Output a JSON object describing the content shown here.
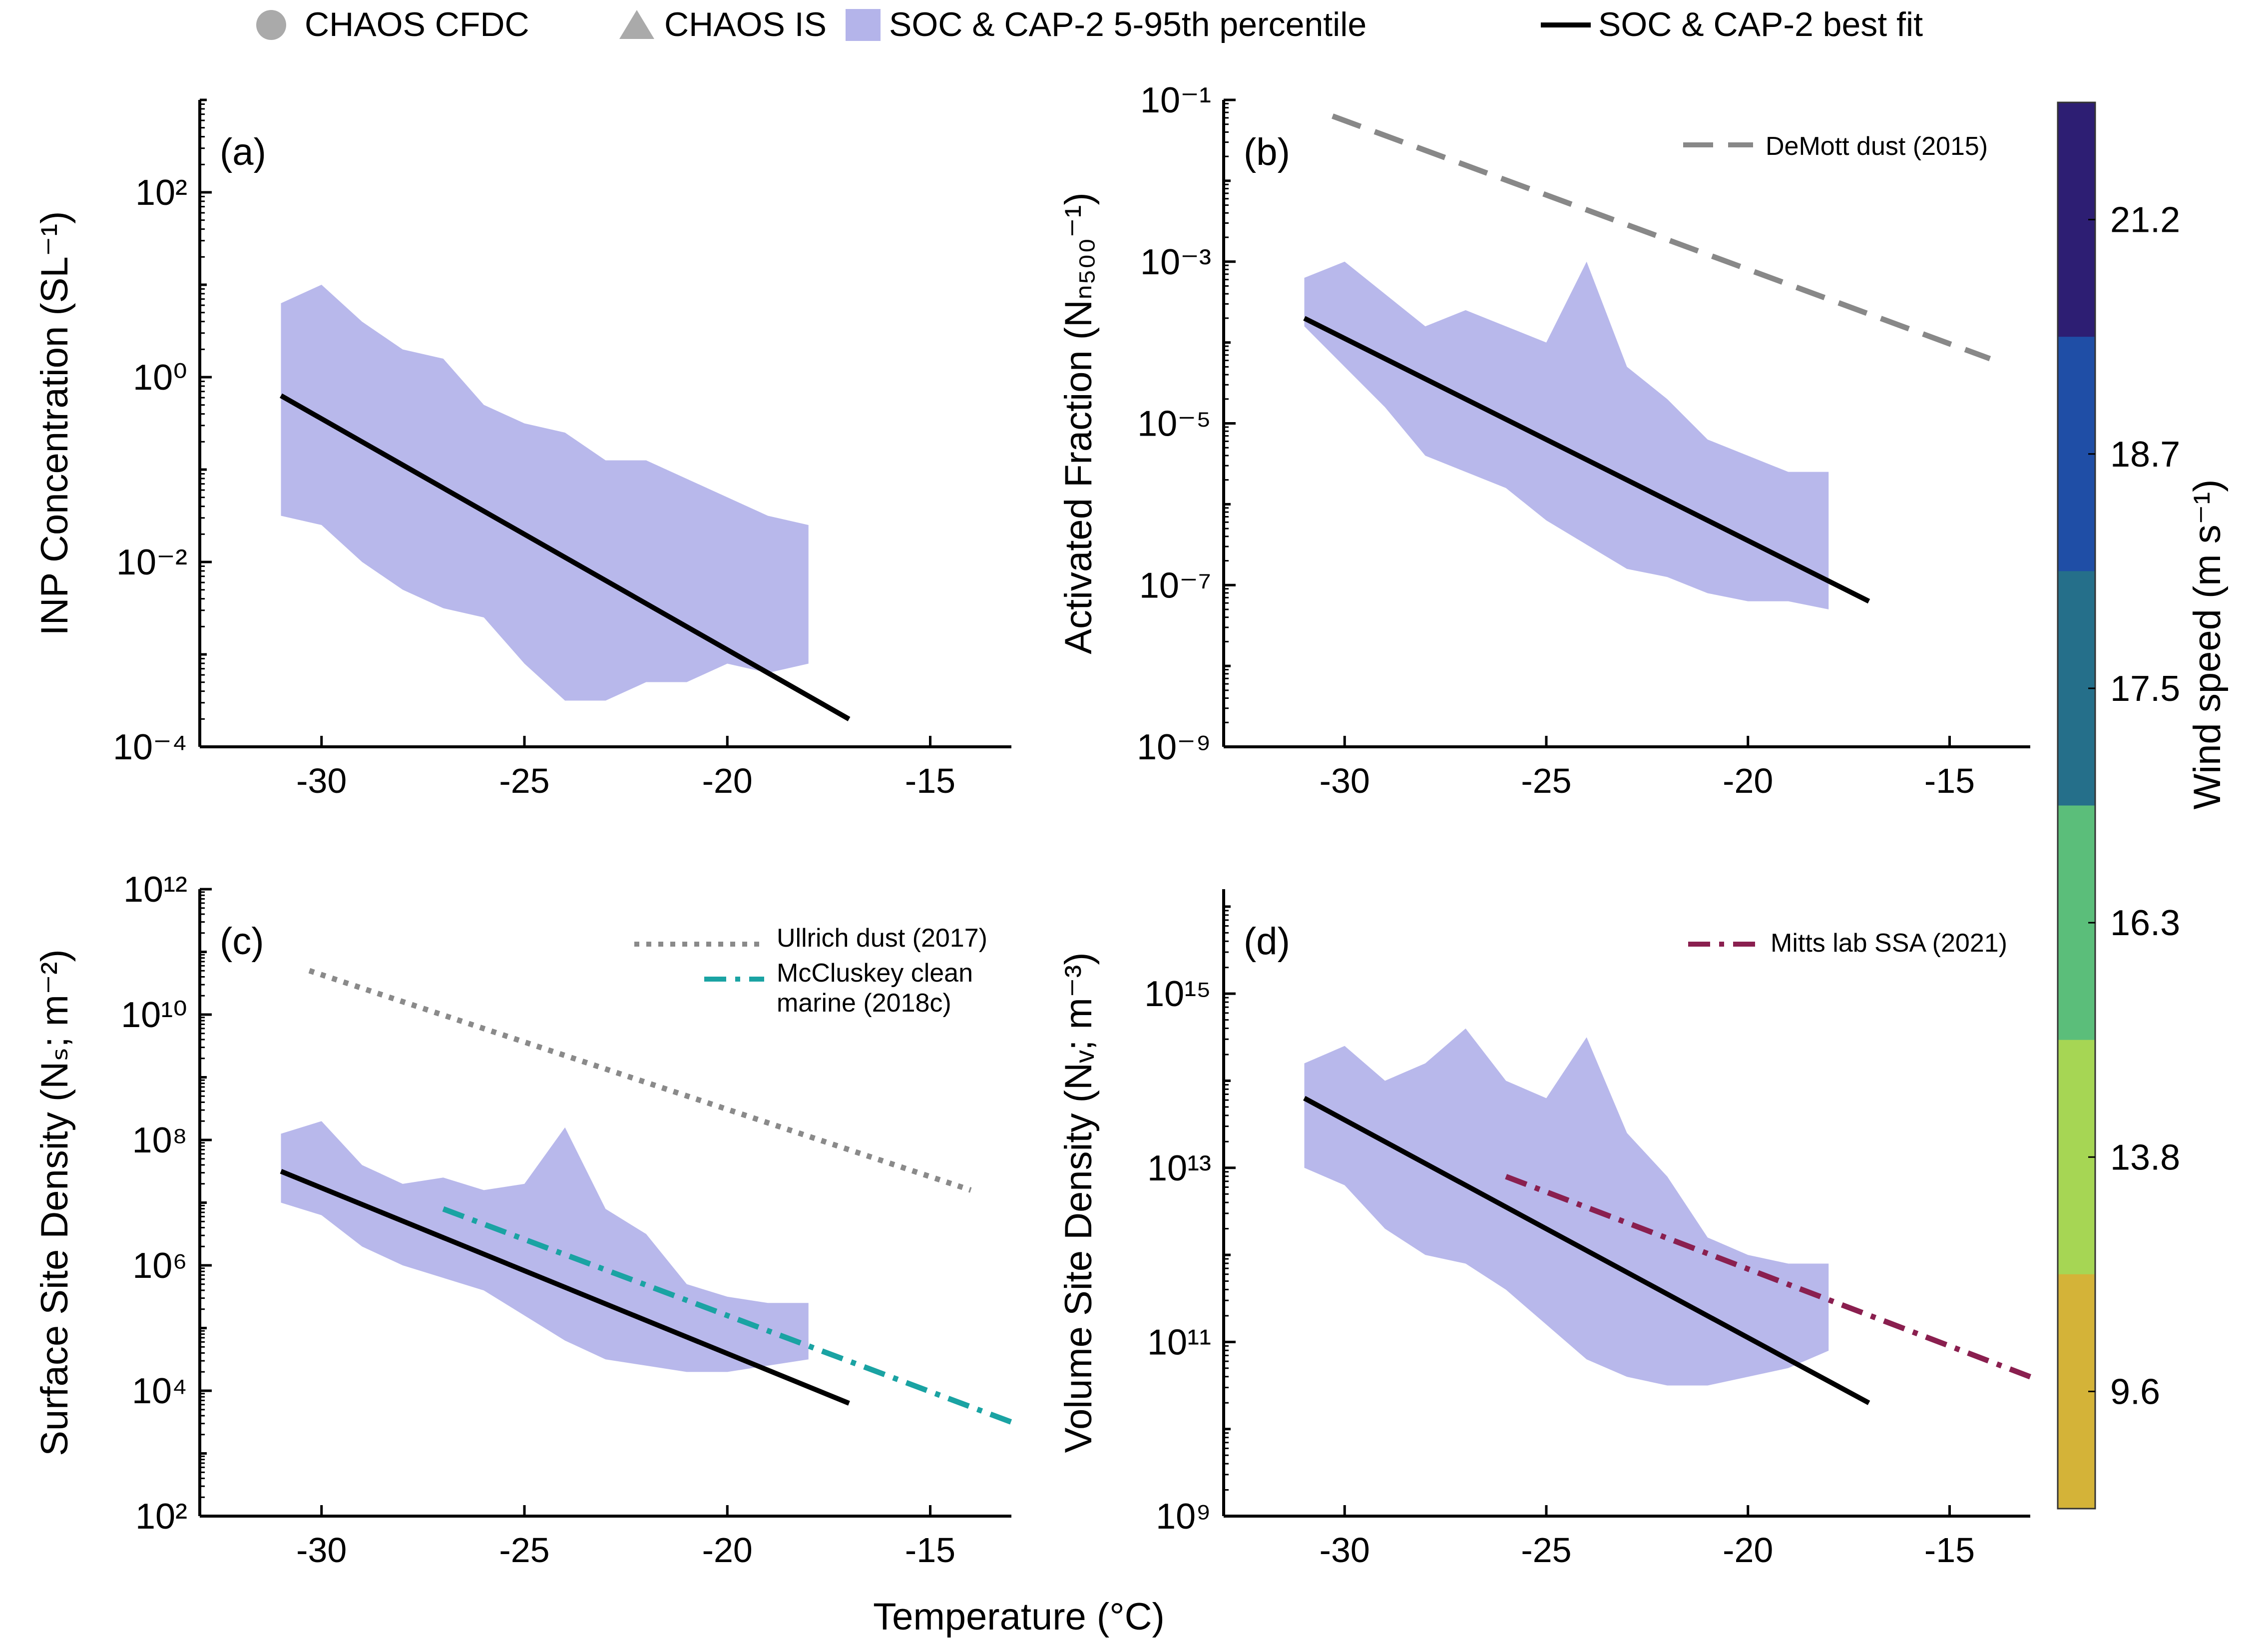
{
  "legend_top": [
    {
      "marker": "circle",
      "label": "CHAOS CFDC",
      "color": "#aaaaaa"
    },
    {
      "marker": "triangle",
      "label": "CHAOS IS",
      "color": "#aaaaaa"
    },
    {
      "marker": "patch",
      "label": "SOC & CAP-2 5-95th percentile",
      "color": "#b4b4ea"
    },
    {
      "marker": "line",
      "label": "SOC & CAP-2 best fit",
      "color": "#000000"
    }
  ],
  "xlabel": "Temperature (°C)",
  "colorbar": {
    "label": "Wind speed (m s⁻¹)",
    "ticks": [
      "21.2",
      "18.7",
      "17.5",
      "16.3",
      "13.8",
      "9.6"
    ],
    "colors_top_to_bottom": [
      "#2d1e73",
      "#1f4ea6",
      "#256f8a",
      "#5bbe7a",
      "#a6d654",
      "#d4b338"
    ]
  },
  "colors": {
    "band": "#b4b4ea",
    "errorbar": "#b0b0b0",
    "fit": "#000000",
    "demott": "#888888",
    "ullrich": "#8a8a8a",
    "mccluskey": "#1aa3a3",
    "mitts": "#8a1f4f"
  },
  "chart_data": [
    {
      "id": "a",
      "type": "scatter",
      "panel_label": "(a)",
      "ylabel": "INP Concentration (SL⁻¹)",
      "xlim": [
        -33,
        -13
      ],
      "ylim_log10": [
        -4,
        3
      ],
      "xticks": [
        "-30",
        "-25",
        "-20",
        "-15"
      ],
      "yticks": [
        "10⁻⁴",
        "10⁻²",
        "10⁰",
        "10²"
      ],
      "ytick_exponents": [
        -4,
        -2,
        0,
        2
      ],
      "band": {
        "x": [
          -31,
          -30,
          -29,
          -28,
          -27,
          -26,
          -25,
          -24,
          -23,
          -22,
          -21,
          -20,
          -19,
          -18
        ],
        "upper_log10": [
          0.8,
          1.0,
          0.6,
          0.3,
          0.2,
          -0.3,
          -0.5,
          -0.6,
          -0.9,
          -0.9,
          -1.1,
          -1.3,
          -1.5,
          -1.6
        ],
        "lower_log10": [
          -1.5,
          -1.6,
          -2.0,
          -2.3,
          -2.5,
          -2.6,
          -3.1,
          -3.5,
          -3.5,
          -3.3,
          -3.3,
          -3.1,
          -3.2,
          -3.1
        ]
      },
      "fit": {
        "x": [
          -31,
          -17
        ],
        "y_log10": [
          -0.2,
          -3.7
        ]
      },
      "reference_lines": []
    },
    {
      "id": "b",
      "type": "scatter",
      "panel_label": "(b)",
      "ylabel": "Activated Fraction (Nₙ₅₀₀⁻¹)",
      "xlim": [
        -33,
        -13
      ],
      "ylim_log10": [
        -9,
        -1
      ],
      "xticks": [
        "-30",
        "-25",
        "-20",
        "-15"
      ],
      "yticks": [
        "10⁻⁹",
        "10⁻⁷",
        "10⁻⁵",
        "10⁻³",
        "10⁻¹"
      ],
      "ytick_exponents": [
        -9,
        -7,
        -5,
        -3,
        -1
      ],
      "band": {
        "x": [
          -31,
          -30,
          -29,
          -28,
          -27,
          -26,
          -25,
          -24,
          -23,
          -22,
          -21,
          -20,
          -19,
          -18
        ],
        "upper_log10": [
          -3.2,
          -3.0,
          -3.4,
          -3.8,
          -3.6,
          -3.8,
          -4.0,
          -3.0,
          -4.3,
          -4.7,
          -5.2,
          -5.4,
          -5.6,
          -5.6
        ],
        "lower_log10": [
          -3.8,
          -4.3,
          -4.8,
          -5.4,
          -5.6,
          -5.8,
          -6.2,
          -6.5,
          -6.8,
          -6.9,
          -7.1,
          -7.2,
          -7.2,
          -7.3
        ]
      },
      "fit": {
        "x": [
          -31,
          -17
        ],
        "y_log10": [
          -3.7,
          -7.2
        ]
      },
      "reference_lines": [
        {
          "name": "DeMott dust (2015)",
          "style": "dashed",
          "color_key": "demott",
          "x": [
            -30.3,
            -14.0
          ],
          "y_log10": [
            -1.2,
            -4.2
          ]
        }
      ]
    },
    {
      "id": "c",
      "type": "scatter",
      "panel_label": "(c)",
      "ylabel": "Surface Site Density (Nₛ; m⁻²)",
      "xlim": [
        -33,
        -13
      ],
      "ylim_log10": [
        2,
        12
      ],
      "xticks": [
        "-30",
        "-25",
        "-20",
        "-15"
      ],
      "yticks": [
        "10²",
        "10⁴",
        "10⁶",
        "10⁸",
        "10¹⁰",
        "10¹²"
      ],
      "ytick_exponents": [
        2,
        4,
        6,
        8,
        10,
        12
      ],
      "band": {
        "x": [
          -31,
          -30,
          -29,
          -28,
          -27,
          -26,
          -25,
          -24,
          -23,
          -22,
          -21,
          -20,
          -19,
          -18
        ],
        "upper_log10": [
          8.1,
          8.3,
          7.6,
          7.3,
          7.4,
          7.2,
          7.3,
          8.2,
          6.9,
          6.5,
          5.7,
          5.5,
          5.4,
          5.4
        ],
        "lower_log10": [
          7.0,
          6.8,
          6.3,
          6.0,
          5.8,
          5.6,
          5.2,
          4.8,
          4.5,
          4.4,
          4.3,
          4.3,
          4.4,
          4.5
        ]
      },
      "fit": {
        "x": [
          -31,
          -17
        ],
        "y_log10": [
          7.5,
          3.8
        ]
      },
      "reference_lines": [
        {
          "name": "Ullrich dust (2017)",
          "style": "dotted",
          "color_key": "ullrich",
          "x": [
            -30.3,
            -14.0
          ],
          "y_log10": [
            10.7,
            7.2
          ]
        },
        {
          "name": "McCluskey clean marine (2018c)",
          "style": "dashdot",
          "color_key": "mccluskey",
          "x": [
            -27.0,
            -13.0
          ],
          "y_log10": [
            6.9,
            3.5
          ]
        }
      ]
    },
    {
      "id": "d",
      "type": "scatter",
      "panel_label": "(d)",
      "ylabel": "Volume Site Density (Nᵥ; m⁻³)",
      "xlim": [
        -33,
        -13
      ],
      "ylim_log10": [
        9,
        16.2
      ],
      "xticks": [
        "-30",
        "-25",
        "-20",
        "-15"
      ],
      "yticks": [
        "10⁹",
        "10¹¹",
        "10¹³",
        "10¹⁵"
      ],
      "ytick_exponents": [
        9,
        11,
        13,
        15
      ],
      "band": {
        "x": [
          -31,
          -30,
          -29,
          -28,
          -27,
          -26,
          -25,
          -24,
          -23,
          -22,
          -21,
          -20,
          -19,
          -18
        ],
        "upper_log10": [
          14.2,
          14.4,
          14.0,
          14.2,
          14.6,
          14.0,
          13.8,
          14.5,
          13.4,
          12.9,
          12.2,
          12.0,
          11.9,
          11.9
        ],
        "lower_log10": [
          13.0,
          12.8,
          12.3,
          12.0,
          11.9,
          11.6,
          11.2,
          10.8,
          10.6,
          10.5,
          10.5,
          10.6,
          10.7,
          10.9
        ]
      },
      "fit": {
        "x": [
          -31,
          -17
        ],
        "y_log10": [
          13.8,
          10.3
        ]
      },
      "reference_lines": [
        {
          "name": "Mitts lab SSA (2021)",
          "style": "dashdot",
          "color_key": "mitts",
          "x": [
            -26.0,
            -13.0
          ],
          "y_log10": [
            12.9,
            10.6
          ]
        }
      ]
    }
  ],
  "reference_labels": {
    "a": [],
    "b": [
      {
        "text": "DeMott dust (2015)"
      }
    ],
    "c": [
      {
        "text": "Ullrich dust (2017)"
      },
      {
        "text": "McCluskey clean"
      },
      {
        "text": "marine (2018c)"
      }
    ],
    "d": [
      {
        "text": "Mitts lab SSA (2021)"
      }
    ]
  }
}
